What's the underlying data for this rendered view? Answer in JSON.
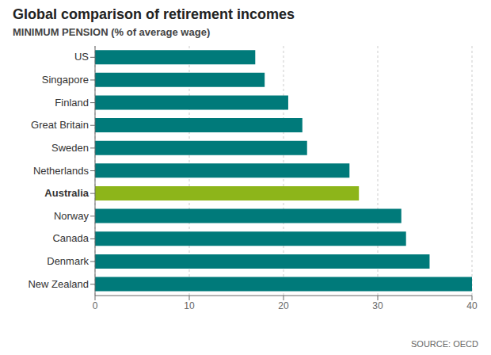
{
  "chart_data": {
    "type": "bar",
    "orientation": "horizontal",
    "title": "Global comparison of retirement incomes",
    "subtitle": "MINIMUM PENSION (% of average wage)",
    "annotations": [
      "SOURCE: OECD"
    ],
    "categories": [
      "US",
      "Singapore",
      "Finland",
      "Great Britain",
      "Sweden",
      "Netherlands",
      "Australia",
      "Norway",
      "Canada",
      "Denmark",
      "New Zealand"
    ],
    "values": [
      17.0,
      18.0,
      20.5,
      22.0,
      22.5,
      27.0,
      28.0,
      32.5,
      33.0,
      35.5,
      40.0
    ],
    "colors": [
      "#007a7a",
      "#007a7a",
      "#007a7a",
      "#007a7a",
      "#007a7a",
      "#007a7a",
      "#8db51a",
      "#007a7a",
      "#007a7a",
      "#007a7a",
      "#007a7a"
    ],
    "xlim": [
      0,
      40
    ],
    "xticks": [
      0,
      10,
      20,
      30,
      40
    ],
    "grid": true
  }
}
